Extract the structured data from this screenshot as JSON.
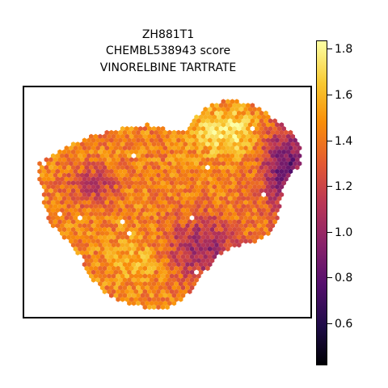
{
  "chart_data": {
    "type": "heatmap",
    "title_lines": [
      "ZH881T1",
      "CHEMBL538943 score",
      "VINORELBINE TARTRATE"
    ],
    "colormap": "inferno",
    "color_range": [
      0.42,
      1.84
    ],
    "colorbar_ticks": [
      0.6,
      0.8,
      1.0,
      1.2,
      1.4,
      1.6,
      1.8
    ],
    "colorbar_tick_labels": [
      "0.6",
      "0.8",
      "1.0",
      "1.2",
      "1.4",
      "1.6",
      "1.8"
    ],
    "axes_ticks": false,
    "grid": false,
    "legend": "colorbar right"
  },
  "colors": {
    "inferno_stops": [
      "#000004",
      "#1f0c48",
      "#550f6d",
      "#88226a",
      "#ba3655",
      "#e35933",
      "#f98e09",
      "#f8c932",
      "#fcffa4"
    ],
    "frame": "#000000",
    "background": "#ffffff"
  }
}
